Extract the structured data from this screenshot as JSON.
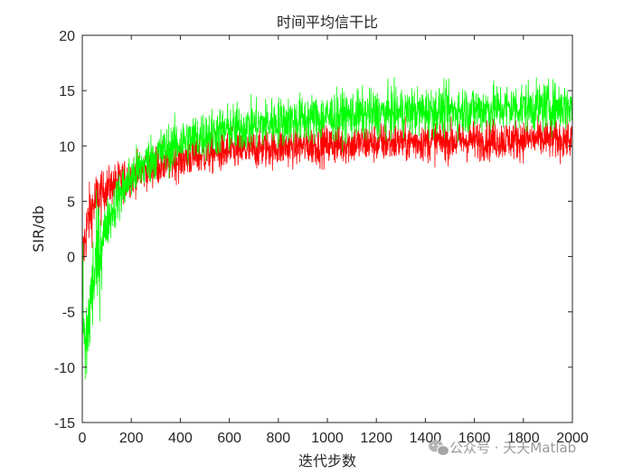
{
  "chart_data": {
    "type": "line",
    "title": "时间平均信干比",
    "xlabel": "迭代步数",
    "ylabel": "SIR/db",
    "xlim": [
      0,
      2000
    ],
    "ylim": [
      -15,
      20
    ],
    "xticks": [
      0,
      200,
      400,
      600,
      800,
      1000,
      1200,
      1400,
      1600,
      1800,
      2000
    ],
    "yticks": [
      -15,
      -10,
      -5,
      0,
      5,
      10,
      15,
      20
    ],
    "grid": false,
    "box": true,
    "series": [
      {
        "color": "#ff0000",
        "noise": 0.9,
        "x": [
          0,
          5,
          10,
          20,
          30,
          50,
          75,
          100,
          150,
          200,
          250,
          300,
          400,
          500,
          600,
          800,
          1000,
          1200,
          1400,
          1600,
          1800,
          2000
        ],
        "values": [
          -1,
          0.5,
          1.5,
          2.8,
          3.8,
          4.8,
          5.6,
          6.2,
          6.8,
          7.3,
          7.8,
          8.2,
          8.8,
          9.2,
          9.5,
          9.9,
          10.1,
          10.3,
          10.4,
          10.5,
          10.6,
          10.6
        ]
      },
      {
        "color": "#00ff00",
        "noise": 1.1,
        "x": [
          0,
          10,
          20,
          30,
          40,
          50,
          75,
          100,
          150,
          200,
          250,
          300,
          400,
          500,
          600,
          800,
          1000,
          1200,
          1400,
          1600,
          1800,
          2000
        ],
        "values": [
          -2,
          -9,
          -7,
          -5,
          -3,
          -1.5,
          1,
          3,
          5.5,
          7.2,
          8.3,
          9.2,
          10.3,
          11,
          11.5,
          12.2,
          12.6,
          12.9,
          13.1,
          13.3,
          13.5,
          13.6
        ]
      }
    ]
  },
  "watermark": {
    "text": "公众号 · 天天Matlab",
    "icon": "wechat-icon"
  }
}
